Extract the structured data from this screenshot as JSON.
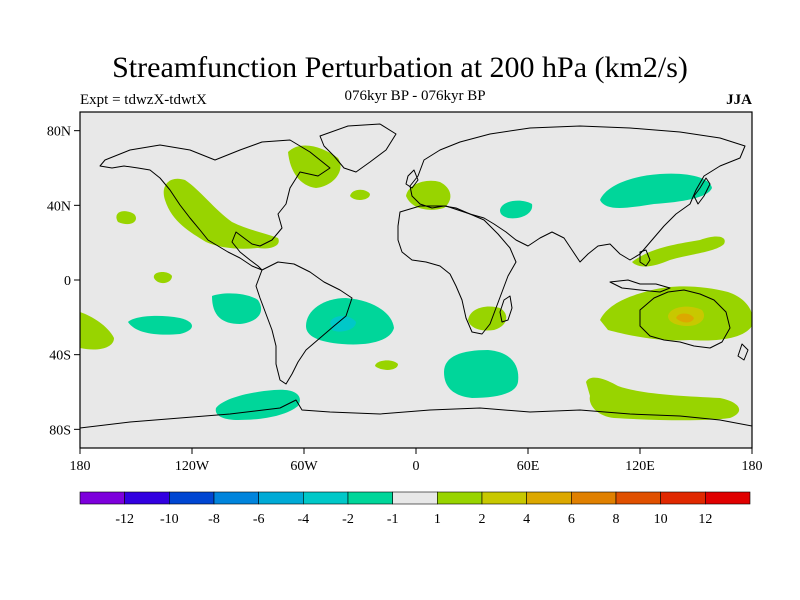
{
  "title": "Streamfunction Perturbation at 200 hPa (km2/s)",
  "experiment_label": "Expt = tdwzX-tdwtX",
  "period_label": "076kyr BP - 076kyr BP",
  "season_label": "JJA",
  "map": {
    "lat_ticks": [
      {
        "value": 80,
        "label": "80N"
      },
      {
        "value": 40,
        "label": "40N"
      },
      {
        "value": 0,
        "label": "0"
      },
      {
        "value": -40,
        "label": "40S"
      },
      {
        "value": -80,
        "label": "80S"
      }
    ],
    "lon_ticks": [
      {
        "value": -180,
        "label": "180"
      },
      {
        "value": -120,
        "label": "120W"
      },
      {
        "value": -60,
        "label": "60W"
      },
      {
        "value": 0,
        "label": "0"
      },
      {
        "value": 60,
        "label": "60E"
      },
      {
        "value": 120,
        "label": "120E"
      },
      {
        "value": 180,
        "label": "180"
      }
    ],
    "colors": {
      "background": "#e8e8e8",
      "neg_1_2": "#00d69a",
      "neg_2_4": "#00c8c8",
      "pos_1_2": "#98d400",
      "pos_2_4": "#c8c800",
      "pos_4_6": "#dca800"
    }
  },
  "colorbar": {
    "colors": [
      "#7d00dc",
      "#3200e0",
      "#0046d2",
      "#0084dc",
      "#00aad6",
      "#00c8c8",
      "#00d69a",
      "#e8e8e8",
      "#98d400",
      "#c8c800",
      "#dca800",
      "#e08000",
      "#e05000",
      "#e02800",
      "#e00000"
    ],
    "labels": [
      "-12",
      "-10",
      "-8",
      "-6",
      "-4",
      "-2",
      "-1",
      "1",
      "2",
      "4",
      "6",
      "8",
      "10",
      "12"
    ]
  }
}
